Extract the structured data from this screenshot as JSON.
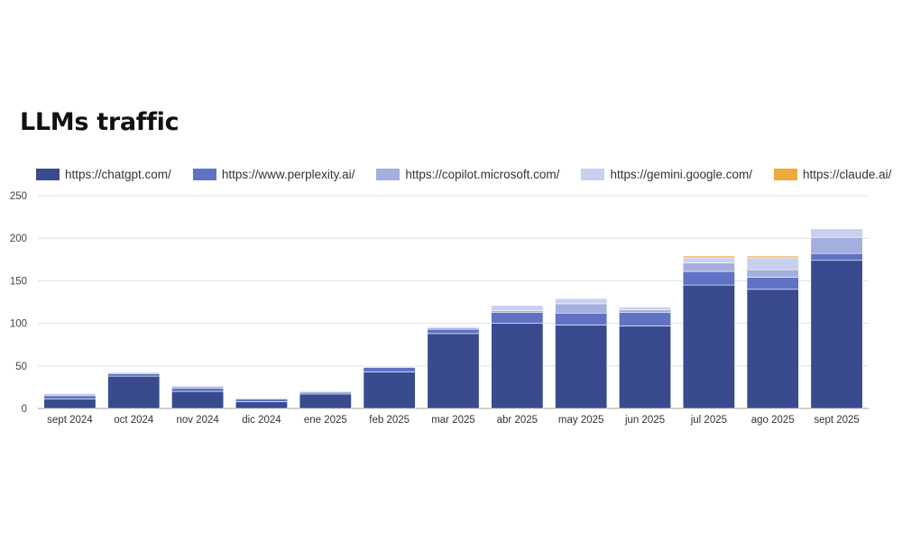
{
  "title": "LLMs traffic",
  "chart_data": {
    "type": "bar",
    "stacked": true,
    "title": "LLMs traffic",
    "xlabel": "",
    "ylabel": "",
    "ylim": [
      0,
      250
    ],
    "yticks": [
      0,
      50,
      100,
      150,
      200,
      250
    ],
    "grid": true,
    "legend_position": "top-left",
    "categories": [
      "sept 2024",
      "oct 2024",
      "nov 2024",
      "dic 2024",
      "ene 2025",
      "feb 2025",
      "mar 2025",
      "abr 2025",
      "may 2025",
      "jun 2025",
      "jul 2025",
      "ago 2025",
      "sept 2025"
    ],
    "series": [
      {
        "name": "https://chatgpt.com/",
        "color": "#3a4a8f",
        "values": [
          11,
          38,
          20,
          8,
          17,
          43,
          88,
          100,
          98,
          97,
          145,
          140,
          174
        ]
      },
      {
        "name": "https://www.perplexity.ai/",
        "color": "#5f72c4",
        "values": [
          4,
          3,
          4,
          3,
          2,
          5,
          5,
          13,
          14,
          16,
          16,
          14,
          8
        ]
      },
      {
        "name": "https://copilot.microsoft.com/",
        "color": "#a4afdf",
        "values": [
          2,
          1,
          2,
          1,
          1,
          1,
          2,
          2,
          11,
          3,
          10,
          9,
          19
        ]
      },
      {
        "name": "https://gemini.google.com/",
        "color": "#c9cfee",
        "values": [
          1,
          0,
          1,
          1,
          0,
          1,
          1,
          6,
          6,
          3,
          6,
          14,
          10
        ]
      },
      {
        "name": "https://claude.ai/",
        "color": "#f0a93c",
        "values": [
          0,
          0,
          0,
          0,
          0,
          0,
          0,
          0,
          0,
          0,
          2,
          2,
          0
        ]
      }
    ]
  }
}
